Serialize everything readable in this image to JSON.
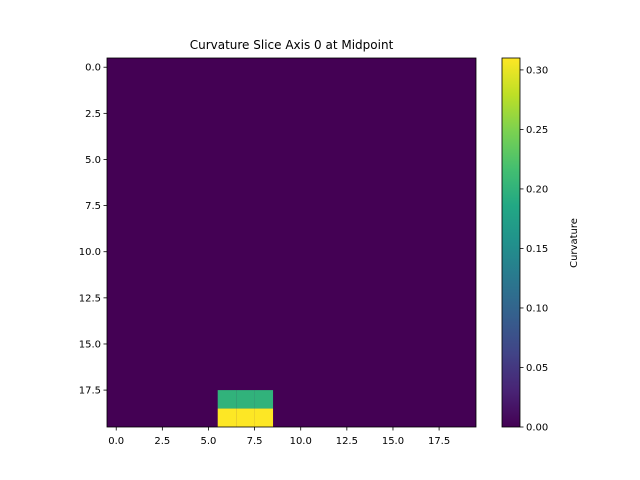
{
  "chart_data": {
    "type": "heatmap",
    "title": "Curvature Slice Axis 0 at Midpoint",
    "xlabel": "",
    "ylabel": "",
    "shape": [
      20,
      20
    ],
    "background_value": 0.0,
    "cells": [
      {
        "row": 18,
        "col": 6,
        "value": 0.2
      },
      {
        "row": 18,
        "col": 7,
        "value": 0.2
      },
      {
        "row": 18,
        "col": 8,
        "value": 0.2
      },
      {
        "row": 19,
        "col": 6,
        "value": 0.31
      },
      {
        "row": 19,
        "col": 7,
        "value": 0.31
      },
      {
        "row": 19,
        "col": 8,
        "value": 0.31
      }
    ],
    "xlim": [
      -0.5,
      19.5
    ],
    "ylim": [
      19.5,
      -0.5
    ],
    "x_ticks": [
      0.0,
      2.5,
      5.0,
      7.5,
      10.0,
      12.5,
      15.0,
      17.5
    ],
    "x_tick_labels": [
      "0.0",
      "2.5",
      "5.0",
      "7.5",
      "10.0",
      "12.5",
      "15.0",
      "17.5"
    ],
    "y_ticks": [
      0.0,
      2.5,
      5.0,
      7.5,
      10.0,
      12.5,
      15.0,
      17.5
    ],
    "y_tick_labels": [
      "0.0",
      "2.5",
      "5.0",
      "7.5",
      "10.0",
      "12.5",
      "15.0",
      "17.5"
    ],
    "colormap": "viridis",
    "colorbar": {
      "label": "Curvature",
      "vmin": 0.0,
      "vmax": 0.31,
      "ticks": [
        0.0,
        0.05,
        0.1,
        0.15,
        0.2,
        0.25,
        0.3
      ],
      "tick_labels": [
        "0.00",
        "0.05",
        "0.10",
        "0.15",
        "0.20",
        "0.25",
        "0.30"
      ]
    },
    "grid": false
  }
}
